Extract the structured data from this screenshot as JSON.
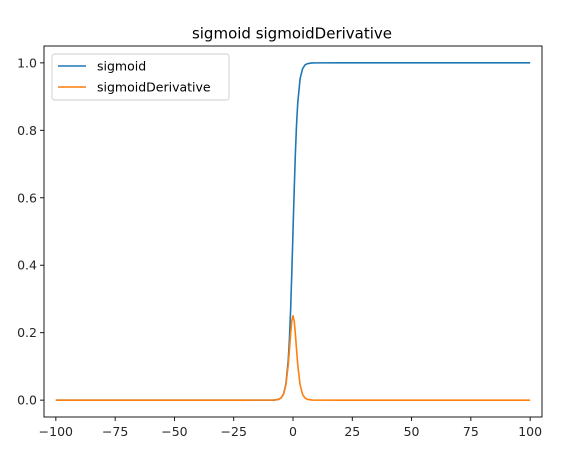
{
  "chart_data": {
    "type": "line",
    "title": "sigmoid   sigmoidDerivative",
    "xlabel": "",
    "ylabel": "",
    "xlim": [
      -105,
      105
    ],
    "ylim": [
      -0.05,
      1.05
    ],
    "x_ticks": [
      -100,
      -75,
      -50,
      -25,
      0,
      25,
      50,
      75,
      100
    ],
    "x_tick_labels": [
      "−100",
      "−75",
      "−50",
      "−25",
      "0",
      "25",
      "50",
      "75",
      "100"
    ],
    "y_ticks": [
      0.0,
      0.2,
      0.4,
      0.6,
      0.8,
      1.0
    ],
    "y_tick_labels": [
      "0.0",
      "0.2",
      "0.4",
      "0.6",
      "0.8",
      "1.0"
    ],
    "grid": false,
    "legend_position": "upper-left",
    "series": [
      {
        "name": "sigmoid",
        "color": "#1f77b4",
        "x": [
          -100,
          -50,
          -20,
          -10,
          -8,
          -6,
          -5,
          -4,
          -3,
          -2,
          -1.5,
          -1,
          -0.5,
          0,
          0.5,
          1,
          1.5,
          2,
          3,
          4,
          5,
          6,
          8,
          10,
          20,
          50,
          100
        ],
        "values": [
          0.0,
          0.0,
          0.0,
          5e-05,
          0.0003,
          0.0025,
          0.0067,
          0.018,
          0.047,
          0.119,
          0.182,
          0.269,
          0.378,
          0.5,
          0.622,
          0.731,
          0.818,
          0.881,
          0.953,
          0.982,
          0.9933,
          0.9975,
          0.9997,
          0.99995,
          1.0,
          1.0,
          1.0
        ]
      },
      {
        "name": "sigmoidDerivative",
        "color": "#ff7f0e",
        "x": [
          -100,
          -50,
          -20,
          -10,
          -8,
          -6,
          -5,
          -4,
          -3,
          -2,
          -1.5,
          -1,
          -0.5,
          0,
          0.5,
          1,
          1.5,
          2,
          3,
          4,
          5,
          6,
          8,
          10,
          20,
          50,
          100
        ],
        "values": [
          0.0,
          0.0,
          0.0,
          5e-05,
          0.0003,
          0.0025,
          0.0066,
          0.0177,
          0.0452,
          0.105,
          0.149,
          0.197,
          0.235,
          0.25,
          0.235,
          0.197,
          0.149,
          0.105,
          0.0452,
          0.0177,
          0.0066,
          0.0025,
          0.0003,
          5e-05,
          0.0,
          0.0,
          0.0
        ]
      }
    ]
  }
}
